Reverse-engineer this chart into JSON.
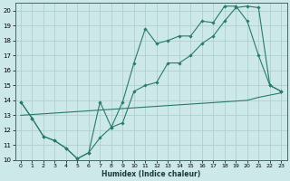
{
  "xlabel": "Humidex (Indice chaleur)",
  "xlim": [
    -0.5,
    23.5
  ],
  "ylim": [
    10,
    20.5
  ],
  "xticks": [
    0,
    1,
    2,
    3,
    4,
    5,
    6,
    7,
    8,
    9,
    10,
    11,
    12,
    13,
    14,
    15,
    16,
    17,
    18,
    19,
    20,
    21,
    22,
    23
  ],
  "yticks": [
    10,
    11,
    12,
    13,
    14,
    15,
    16,
    17,
    18,
    19,
    20
  ],
  "background_color": "#cce8e8",
  "grid_color": "#aacccc",
  "line_color": "#2a7a6a",
  "line1_x": [
    0,
    1,
    2,
    3,
    4,
    5,
    6,
    7,
    8,
    9,
    10,
    11,
    12,
    13,
    14,
    15,
    16,
    17,
    18,
    19,
    20,
    21,
    22,
    23
  ],
  "line1_y": [
    13.9,
    12.8,
    11.6,
    11.3,
    10.8,
    10.1,
    10.5,
    13.9,
    12.2,
    13.9,
    16.5,
    18.8,
    17.8,
    18.0,
    18.3,
    18.3,
    19.3,
    19.2,
    20.3,
    20.3,
    19.3,
    17.0,
    15.0,
    14.6
  ],
  "line2_x": [
    0,
    1,
    2,
    3,
    4,
    5,
    6,
    7,
    8,
    9,
    10,
    11,
    12,
    13,
    14,
    15,
    16,
    17,
    18,
    19,
    20,
    21,
    22,
    23
  ],
  "line2_y": [
    13.9,
    12.8,
    11.6,
    11.3,
    10.8,
    10.1,
    10.5,
    11.5,
    12.2,
    12.5,
    14.6,
    15.0,
    15.2,
    16.5,
    16.5,
    17.0,
    17.8,
    18.3,
    19.3,
    20.2,
    20.3,
    20.2,
    15.0,
    14.6
  ],
  "line3_x": [
    0,
    1,
    2,
    3,
    4,
    5,
    6,
    7,
    8,
    9,
    10,
    11,
    12,
    13,
    14,
    15,
    16,
    17,
    18,
    19,
    20,
    21,
    22,
    23
  ],
  "line3_y": [
    13.0,
    13.05,
    13.1,
    13.15,
    13.2,
    13.25,
    13.3,
    13.35,
    13.4,
    13.45,
    13.5,
    13.55,
    13.6,
    13.65,
    13.7,
    13.75,
    13.8,
    13.85,
    13.9,
    13.95,
    14.0,
    14.2,
    14.35,
    14.5
  ]
}
